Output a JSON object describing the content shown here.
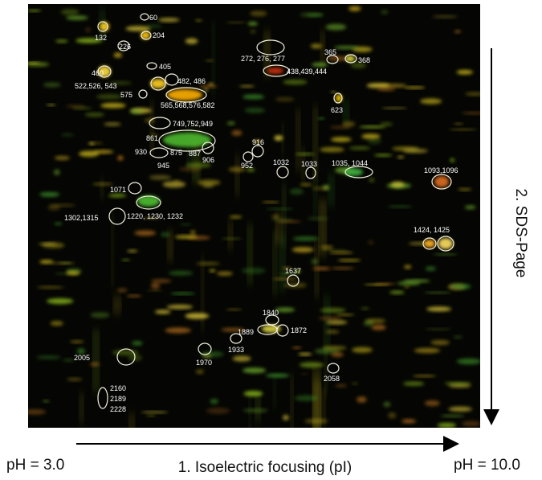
{
  "spot_labels": [
    "60",
    "132",
    "204",
    "226",
    "272, 276, 277",
    "365",
    "368",
    "405",
    "438,439,444",
    "460",
    "482, 486",
    "522,526, 543",
    "575",
    "565,568,576,582",
    "623",
    "749,752,949",
    "861",
    "916",
    "930",
    "875",
    "887",
    "945",
    "906",
    "952",
    "1032",
    "1033",
    "1035, 1044",
    "1093,1096",
    "1071",
    "1302,1315",
    "1220, 1230, 1232",
    "1424, 1425",
    "1637",
    "1840",
    "1889",
    "1872",
    "1933",
    "1970",
    "2005",
    "2058",
    "2160",
    "2189",
    "2228"
  ],
  "axes": {
    "x_label": "1. Isoelectric focusing (pI)",
    "y_label": "2. SDS-Page",
    "ph_low": "pH = 3.0",
    "ph_high": "pH = 10.0"
  }
}
